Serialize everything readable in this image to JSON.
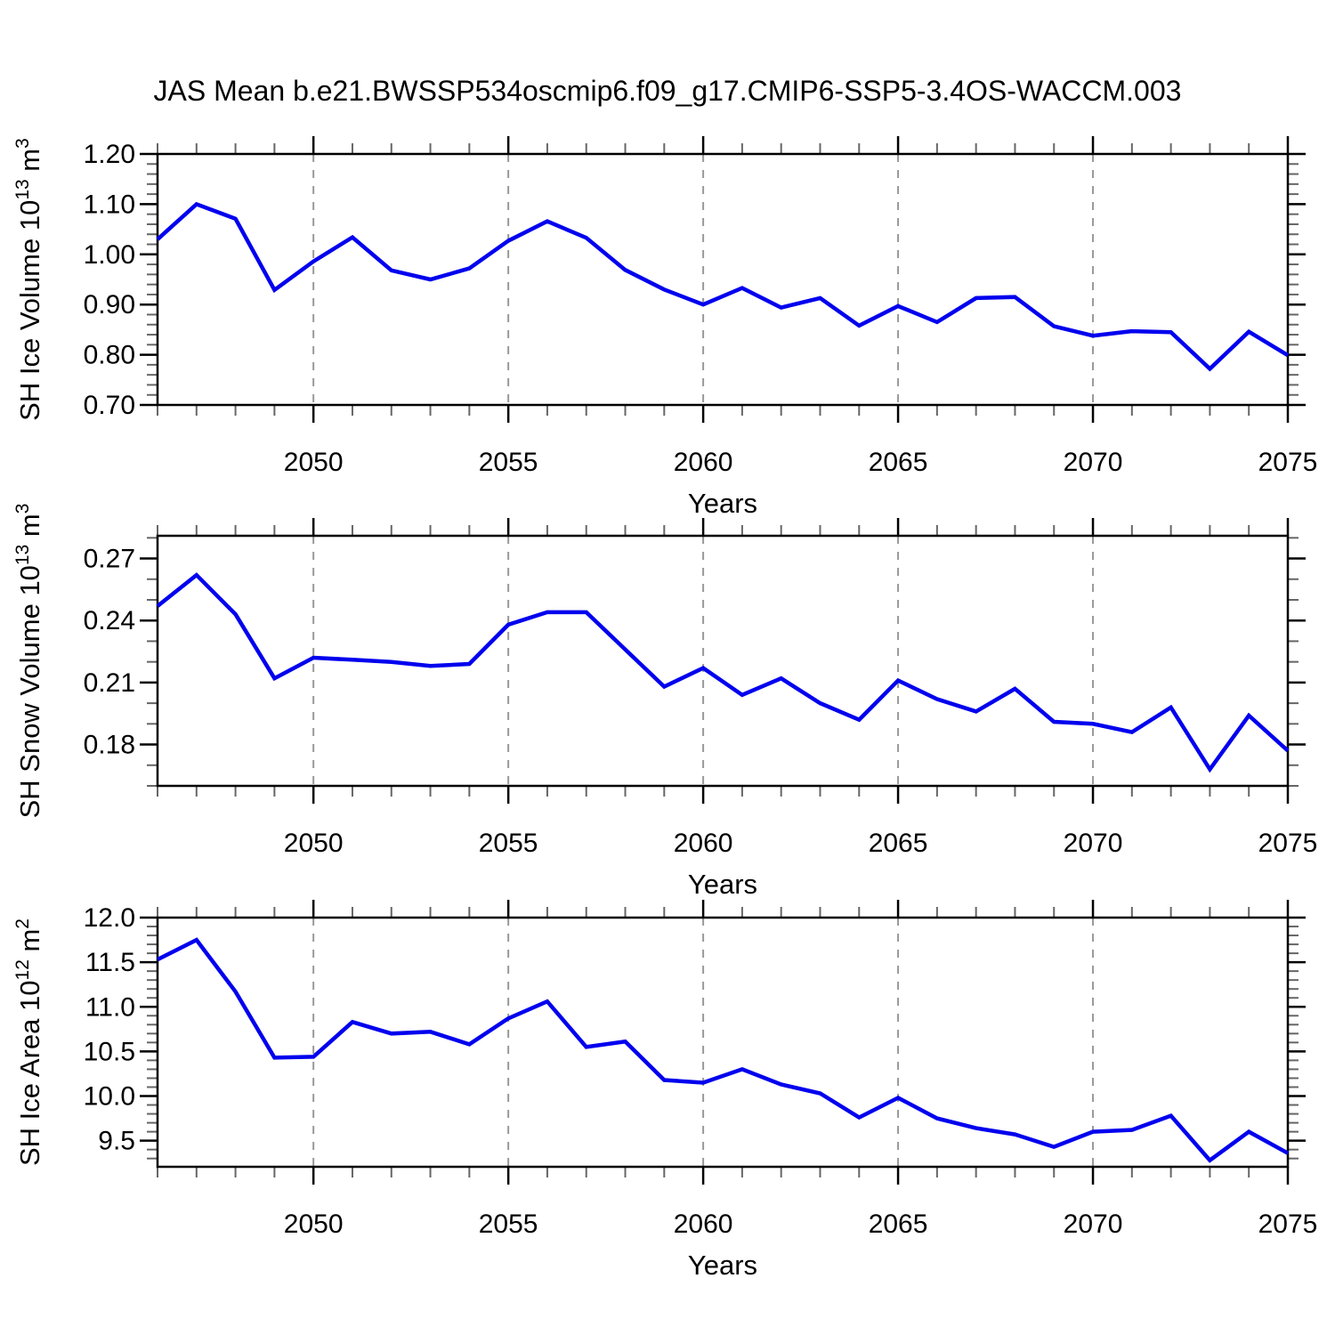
{
  "title": "JAS Mean b.e21.BWSSP534oscmip6.f09_g17.CMIP6-SSP5-3.4OS-WACCM.003",
  "colors": {
    "line": "#0000EE",
    "frame": "#000000",
    "major_tick": "#000000",
    "minor_tick": "#666666",
    "grid": "#999999",
    "text": "#000000"
  },
  "chart_data": [
    {
      "type": "line",
      "name": "sh-ice-volume",
      "ylabel": "SH Ice Volume 10^13 m^3",
      "ylabel_parts": [
        {
          "t": "SH Ice Volume 10",
          "sup": false
        },
        {
          "t": "13",
          "sup": true
        },
        {
          "t": " m",
          "sup": false
        },
        {
          "t": "3",
          "sup": true
        }
      ],
      "xlabel": "Years",
      "x": [
        2046,
        2047,
        2048,
        2049,
        2050,
        2051,
        2052,
        2053,
        2054,
        2055,
        2056,
        2057,
        2058,
        2059,
        2060,
        2061,
        2062,
        2063,
        2064,
        2065,
        2066,
        2067,
        2068,
        2069,
        2070,
        2071,
        2072,
        2073,
        2074,
        2075
      ],
      "values": [
        1.03,
        1.1,
        1.071,
        0.929,
        0.986,
        1.034,
        0.968,
        0.95,
        0.972,
        1.027,
        1.066,
        1.033,
        0.969,
        0.93,
        0.9,
        0.933,
        0.894,
        0.913,
        0.858,
        0.897,
        0.865,
        0.913,
        0.915,
        0.857,
        0.838,
        0.847,
        0.845,
        0.772,
        0.846,
        0.799
      ],
      "ylim": [
        0.7,
        1.2
      ],
      "yticks": [
        0.7,
        0.8,
        0.9,
        1.0,
        1.1,
        1.2
      ],
      "ytick_labels": [
        "0.70",
        "0.80",
        "0.90",
        "1.00",
        "1.10",
        "1.20"
      ],
      "y_minor_step": 0.02,
      "xlim": [
        2046,
        2075
      ],
      "xticks": [
        2050,
        2055,
        2060,
        2065,
        2070,
        2075
      ],
      "xtick_labels": [
        "2050",
        "2055",
        "2060",
        "2065",
        "2070",
        "2075"
      ],
      "x_minor_step": 1,
      "grid_x": [
        2050,
        2055,
        2060,
        2065,
        2070
      ],
      "grid": "vertical-dashed",
      "legend": "none"
    },
    {
      "type": "line",
      "name": "sh-snow-volume",
      "ylabel": "SH Snow Volume 10^13 m^3",
      "ylabel_parts": [
        {
          "t": "SH Snow Volume 10",
          "sup": false
        },
        {
          "t": "13",
          "sup": true
        },
        {
          "t": " m",
          "sup": false
        },
        {
          "t": "3",
          "sup": true
        }
      ],
      "xlabel": "Years",
      "x": [
        2046,
        2047,
        2048,
        2049,
        2050,
        2051,
        2052,
        2053,
        2054,
        2055,
        2056,
        2057,
        2058,
        2059,
        2060,
        2061,
        2062,
        2063,
        2064,
        2065,
        2066,
        2067,
        2068,
        2069,
        2070,
        2071,
        2072,
        2073,
        2074,
        2075
      ],
      "values": [
        0.247,
        0.262,
        0.243,
        0.212,
        0.222,
        0.221,
        0.22,
        0.218,
        0.219,
        0.238,
        0.244,
        0.244,
        0.226,
        0.208,
        0.217,
        0.204,
        0.212,
        0.2,
        0.192,
        0.211,
        0.202,
        0.196,
        0.207,
        0.191,
        0.19,
        0.186,
        0.198,
        0.168,
        0.194,
        0.177
      ],
      "ylim": [
        0.16,
        0.281
      ],
      "yticks": [
        0.18,
        0.21,
        0.24,
        0.27
      ],
      "ytick_labels": [
        "0.18",
        "0.21",
        "0.24",
        "0.27"
      ],
      "y_minor_step": 0.01,
      "xlim": [
        2046,
        2075
      ],
      "xticks": [
        2050,
        2055,
        2060,
        2065,
        2070,
        2075
      ],
      "xtick_labels": [
        "2050",
        "2055",
        "2060",
        "2065",
        "2070",
        "2075"
      ],
      "x_minor_step": 1,
      "grid_x": [
        2050,
        2055,
        2060,
        2065,
        2070
      ],
      "grid": "vertical-dashed",
      "legend": "none"
    },
    {
      "type": "line",
      "name": "sh-ice-area",
      "ylabel": "SH Ice Area 10^12 m^2",
      "ylabel_parts": [
        {
          "t": "SH Ice Area 10",
          "sup": false
        },
        {
          "t": "12",
          "sup": true
        },
        {
          "t": " m",
          "sup": false
        },
        {
          "t": "2",
          "sup": true
        }
      ],
      "xlabel": "Years",
      "x": [
        2046,
        2047,
        2048,
        2049,
        2050,
        2051,
        2052,
        2053,
        2054,
        2055,
        2056,
        2057,
        2058,
        2059,
        2060,
        2061,
        2062,
        2063,
        2064,
        2065,
        2066,
        2067,
        2068,
        2069,
        2070,
        2071,
        2072,
        2073,
        2074,
        2075
      ],
      "values": [
        11.53,
        11.75,
        11.17,
        10.43,
        10.44,
        10.83,
        10.7,
        10.72,
        10.58,
        10.87,
        11.06,
        10.55,
        10.61,
        10.18,
        10.15,
        10.3,
        10.13,
        10.03,
        9.76,
        9.98,
        9.75,
        9.64,
        9.57,
        9.43,
        9.6,
        9.62,
        9.78,
        9.28,
        9.6,
        9.36
      ],
      "ylim": [
        9.207,
        12.0
      ],
      "yticks": [
        9.5,
        10.0,
        10.5,
        11.0,
        11.5,
        12.0
      ],
      "ytick_labels": [
        "9.5",
        "10.0",
        "10.5",
        "11.0",
        "11.5",
        "12.0"
      ],
      "y_minor_step": 0.1,
      "xlim": [
        2046,
        2075
      ],
      "xticks": [
        2050,
        2055,
        2060,
        2065,
        2070,
        2075
      ],
      "xtick_labels": [
        "2050",
        "2055",
        "2060",
        "2065",
        "2070",
        "2075"
      ],
      "x_minor_step": 1,
      "grid_x": [
        2050,
        2055,
        2060,
        2065,
        2070
      ],
      "grid": "vertical-dashed",
      "legend": "none"
    }
  ]
}
